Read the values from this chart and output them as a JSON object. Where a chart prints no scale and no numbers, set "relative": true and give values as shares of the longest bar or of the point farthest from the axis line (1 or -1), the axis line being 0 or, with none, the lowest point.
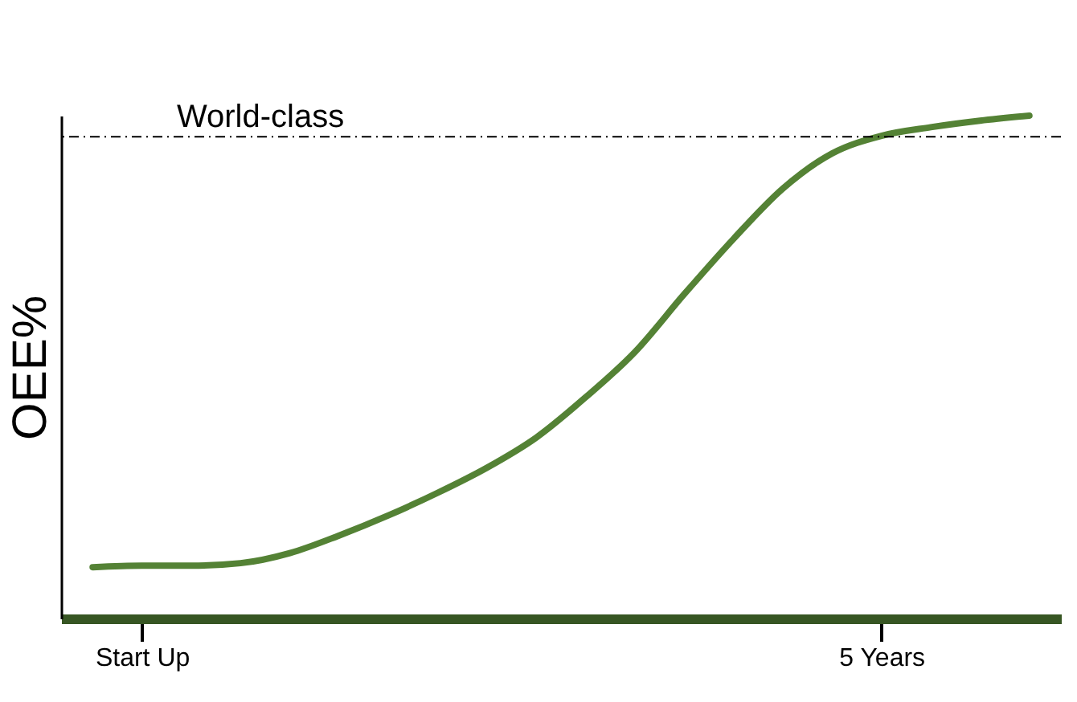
{
  "chart_data": {
    "type": "line",
    "ylabel": "OEE%",
    "relative": true,
    "categories": [
      null,
      "Start Up",
      null,
      null,
      null,
      null,
      null,
      null,
      null,
      null,
      null,
      null,
      null,
      null,
      null,
      null,
      "5 Years",
      null,
      null,
      null
    ],
    "series": [
      {
        "color": "#548235",
        "values": [
          0.102,
          0.105,
          0.105,
          0.11,
          0.13,
          0.165,
          0.205,
          0.25,
          0.3,
          0.36,
          0.44,
          0.53,
          0.645,
          0.755,
          0.855,
          0.925,
          0.96,
          0.977,
          0.99,
          1.0
        ]
      }
    ],
    "ref_lines": [
      {
        "axis": "y",
        "value": 0.958,
        "label": "World-class",
        "color": "#000000",
        "line_style": "dashed"
      }
    ],
    "grid": false,
    "marker": "none",
    "line_style": "solid"
  }
}
